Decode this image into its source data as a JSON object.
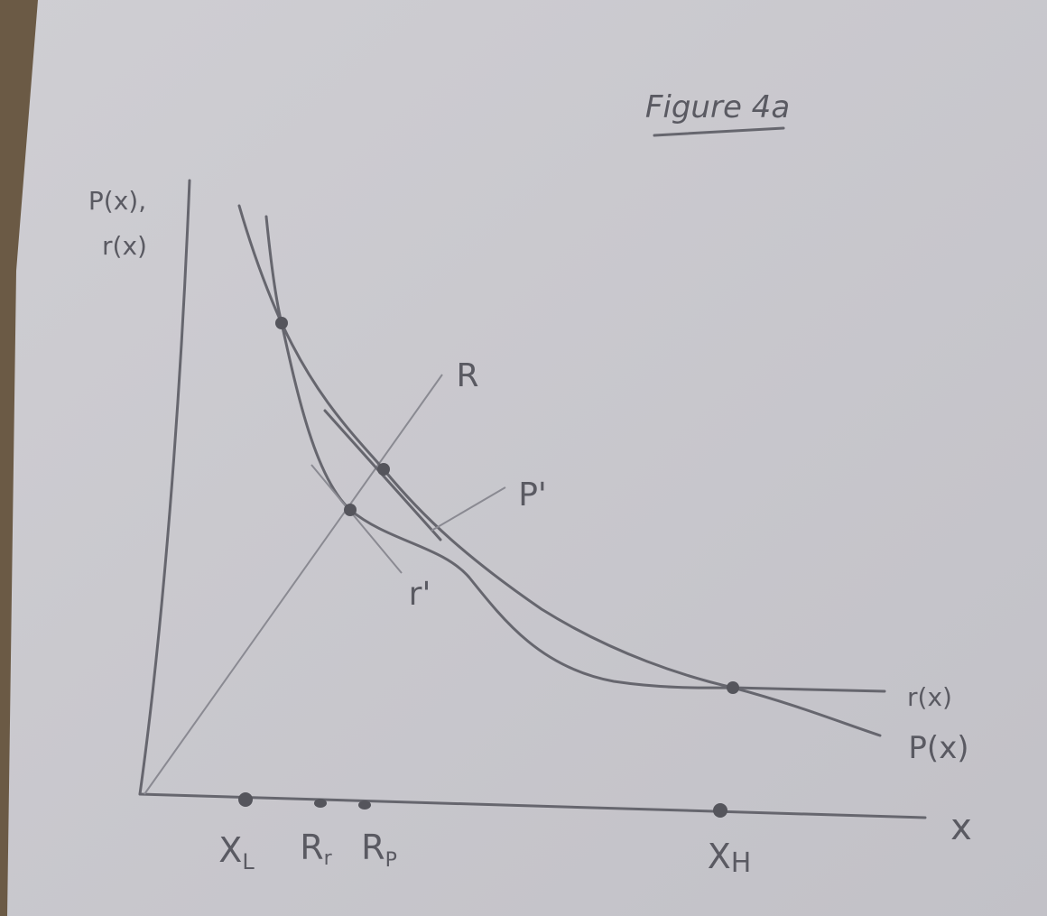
{
  "title": "Figure 4a",
  "y_axis_label": [
    "P(x),",
    "r(x)"
  ],
  "x_axis_label": "x",
  "curve_labels": {
    "R": "R",
    "P_prime": "P'",
    "r_prime": "r'",
    "r": "r(x)",
    "P": "P(x)"
  },
  "axis_points": [
    {
      "main": "X",
      "sub": "L"
    },
    {
      "main": "R",
      "sub": "r"
    },
    {
      "main": "R",
      "sub": "P"
    },
    {
      "main": "X",
      "sub": "H"
    }
  ]
}
